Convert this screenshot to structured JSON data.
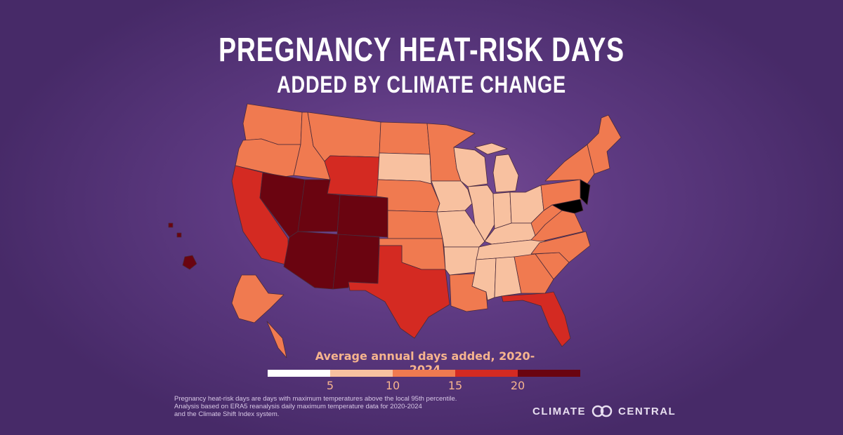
{
  "header": {
    "title": "PREGNANCY HEAT-RISK DAYS",
    "subtitle": "ADDED BY CLIMATE CHANGE"
  },
  "legend": {
    "title": "Average annual days added, 2020-2024",
    "ticks": [
      "5",
      "10",
      "15",
      "20"
    ],
    "colors": [
      "#ffffff",
      "#f8c1a0",
      "#f07a50",
      "#d42a22",
      "#6a0410"
    ]
  },
  "footnote": {
    "line1": "Pregnancy heat-risk days are days with maximum temperatures above the local 95th percentile.",
    "line2": "Analysis based on ERA5 reanalysis daily maximum temperature data for 2020-2024",
    "line3": "and the Climate Shift Index system."
  },
  "logo": {
    "left": "CLIMATE",
    "right": "CENTRAL"
  },
  "map": {
    "classes": {
      "WA": 3,
      "OR": 3,
      "ID": 3,
      "MT": 3,
      "WY": 4,
      "ND": 3,
      "SD": 2,
      "MN": 3,
      "CA": 4,
      "NV": 5,
      "UT": 5,
      "CO": 5,
      "AZ": 5,
      "NM": 5,
      "NE": 3,
      "KS": 3,
      "OK": 3,
      "TX": 4,
      "IA": 2,
      "MO": 2,
      "AR": 2,
      "LA": 3,
      "WI": 2,
      "IL": 2,
      "MI": 2,
      "IN": 2,
      "OH": 2,
      "KY": 2,
      "TN": 2,
      "MS": 2,
      "AL": 2,
      "GA": 3,
      "FL": 4,
      "SC": 3,
      "NC": 3,
      "VA": 3,
      "WV": 3,
      "PA": 3,
      "NY": 3,
      "NE_STATES": 3,
      "AK": 3,
      "HI": 5
    }
  }
}
